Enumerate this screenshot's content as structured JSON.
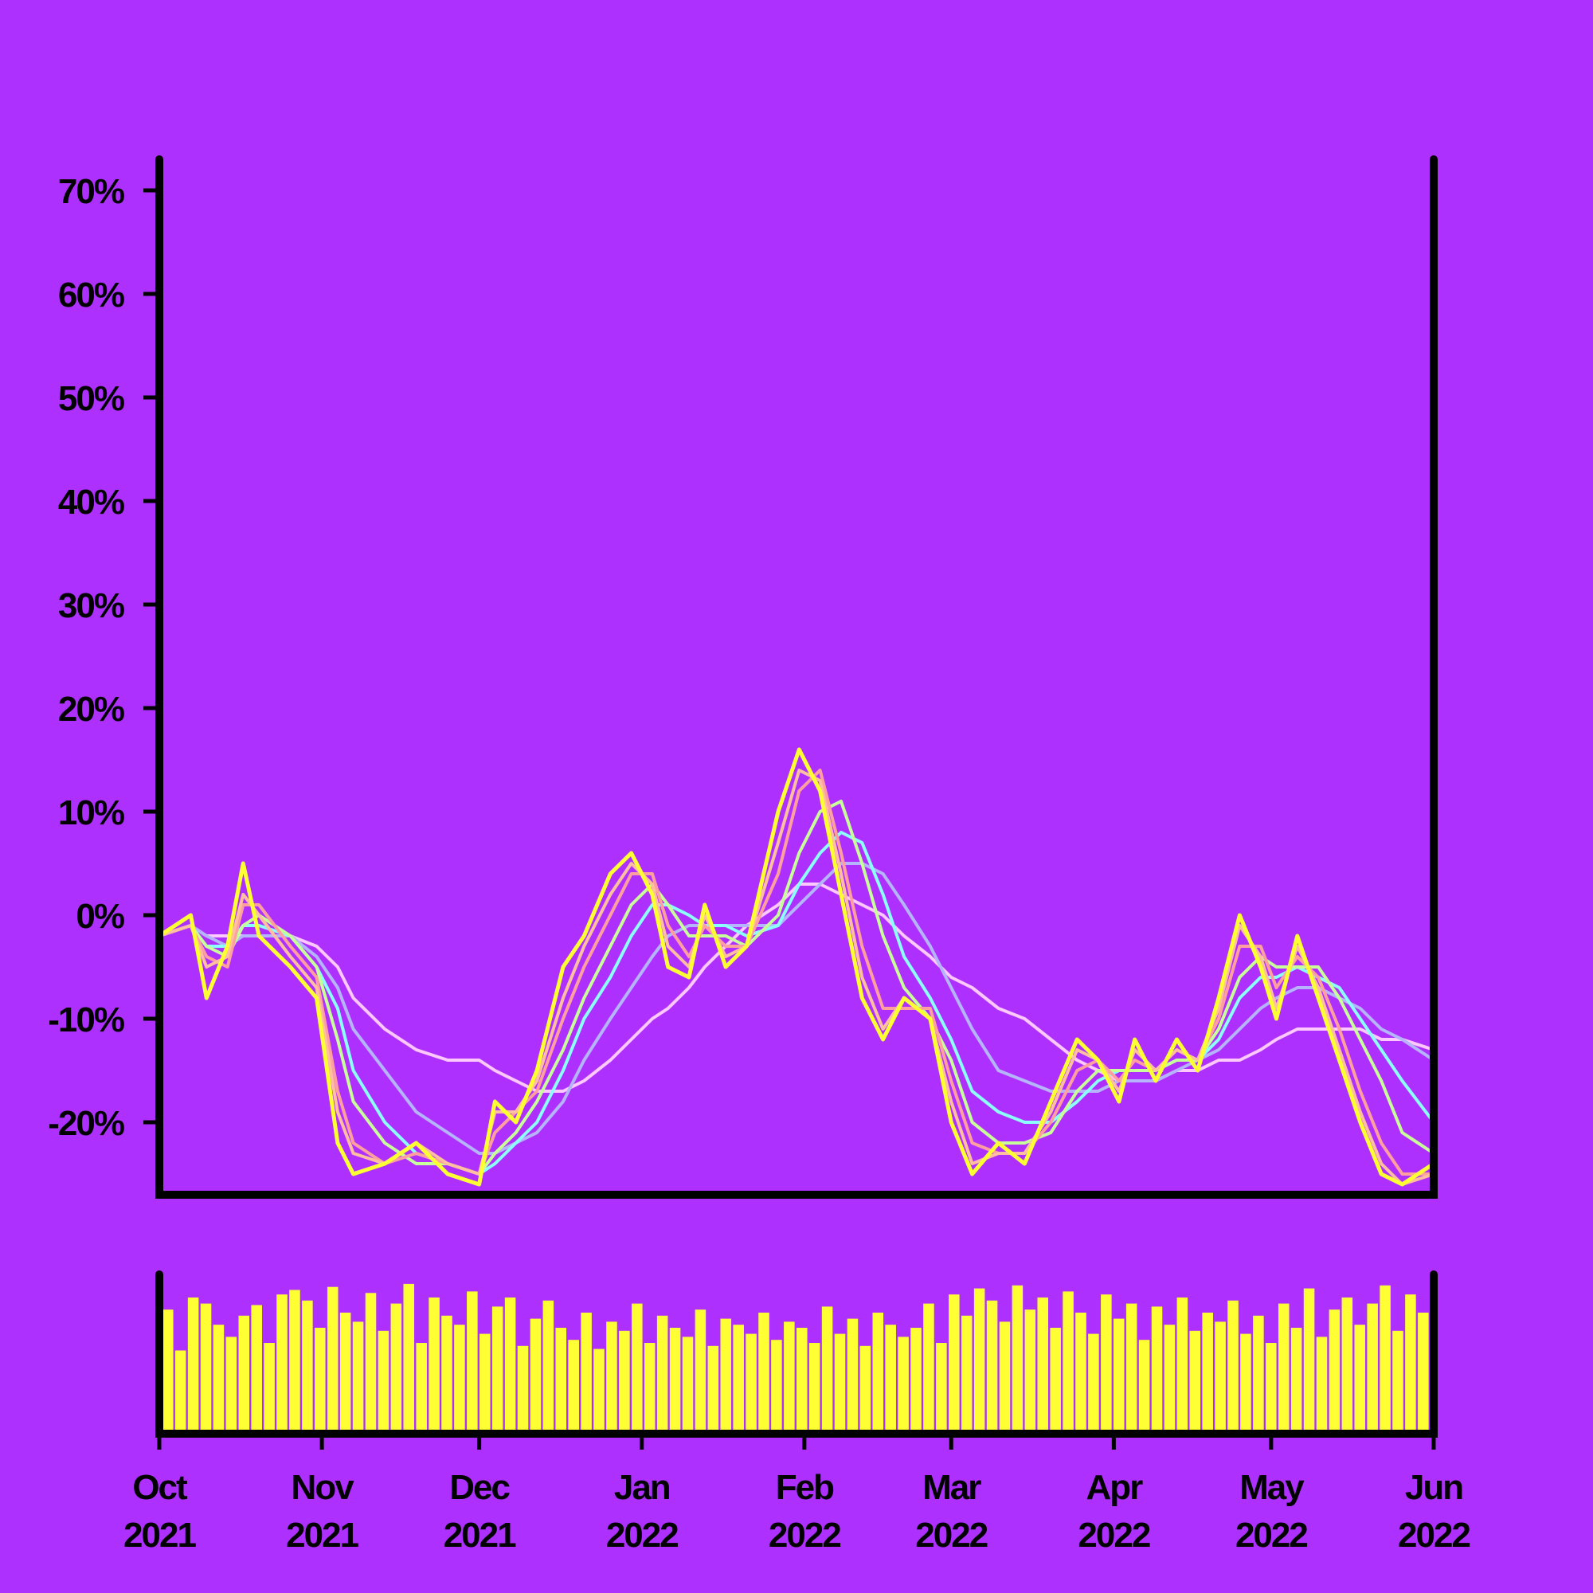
{
  "chart_data": {
    "type": "line",
    "colors": {
      "background": "#ae30ff",
      "axis": "#000000",
      "price": "#ffff33",
      "volume": "#ffff33"
    },
    "price_axis": {
      "ylim": [
        -27,
        73
      ],
      "ticks": [
        {
          "value": 70,
          "label": "70%"
        },
        {
          "value": 60,
          "label": "60%"
        },
        {
          "value": 50,
          "label": "50%"
        },
        {
          "value": 40,
          "label": "40%"
        },
        {
          "value": 30,
          "label": "30%"
        },
        {
          "value": 20,
          "label": "20%"
        },
        {
          "value": 10,
          "label": "10%"
        },
        {
          "value": 0,
          "label": "0%"
        },
        {
          "value": -10,
          "label": "-10%"
        },
        {
          "value": -20,
          "label": "-20%"
        }
      ]
    },
    "x_axis": {
      "range": [
        "2021-10-01",
        "2022-06-01"
      ],
      "ticks": [
        {
          "date": "2021-10-01",
          "month": "Oct",
          "year": "2021"
        },
        {
          "date": "2021-11-01",
          "month": "Nov",
          "year": "2021"
        },
        {
          "date": "2021-12-01",
          "month": "Dec",
          "year": "2021"
        },
        {
          "date": "2022-01-01",
          "month": "Jan",
          "year": "2022"
        },
        {
          "date": "2022-02-01",
          "month": "Feb",
          "year": "2022"
        },
        {
          "date": "2022-03-01",
          "month": "Mar",
          "year": "2022"
        },
        {
          "date": "2022-04-01",
          "month": "Apr",
          "year": "2022"
        },
        {
          "date": "2022-05-01",
          "month": "May",
          "year": "2022"
        },
        {
          "date": "2022-06-01",
          "month": "Jun",
          "year": "2022"
        }
      ]
    },
    "price_series": {
      "dates": [
        "2021-10-01",
        "2021-10-07",
        "2021-10-10",
        "2021-10-14",
        "2021-10-17",
        "2021-10-20",
        "2021-10-26",
        "2021-10-31",
        "2021-11-04",
        "2021-11-07",
        "2021-11-13",
        "2021-11-19",
        "2021-11-25",
        "2021-12-01",
        "2021-12-04",
        "2021-12-08",
        "2021-12-12",
        "2021-12-17",
        "2021-12-21",
        "2021-12-26",
        "2021-12-30",
        "2022-01-03",
        "2022-01-06",
        "2022-01-10",
        "2022-01-13",
        "2022-01-17",
        "2022-01-21",
        "2022-01-27",
        "2022-01-31",
        "2022-02-04",
        "2022-02-08",
        "2022-02-12",
        "2022-02-16",
        "2022-02-20",
        "2022-02-25",
        "2022-03-01",
        "2022-03-05",
        "2022-03-10",
        "2022-03-15",
        "2022-03-20",
        "2022-03-25",
        "2022-03-29",
        "2022-04-02",
        "2022-04-05",
        "2022-04-09",
        "2022-04-13",
        "2022-04-17",
        "2022-04-21",
        "2022-04-25",
        "2022-04-29",
        "2022-05-02",
        "2022-05-06",
        "2022-05-10",
        "2022-05-14",
        "2022-05-18",
        "2022-05-22",
        "2022-05-26",
        "2022-06-01"
      ],
      "values": [
        -2,
        0,
        -8,
        -3,
        5,
        -2,
        -5,
        -8,
        -22,
        -25,
        -24,
        -22,
        -25,
        -26,
        -18,
        -20,
        -15,
        -5,
        -2,
        4,
        6,
        2,
        -5,
        -6,
        1,
        -5,
        -3,
        10,
        16,
        12,
        2,
        -8,
        -12,
        -8,
        -10,
        -20,
        -25,
        -22,
        -24,
        -18,
        -12,
        -14,
        -18,
        -12,
        -16,
        -12,
        -15,
        -8,
        0,
        -5,
        -10,
        -2,
        -8,
        -14,
        -20,
        -25,
        -26,
        -24
      ]
    },
    "ma_series": [
      {
        "window": 5,
        "color": "#ffbfa0",
        "values": [
          -2,
          -1,
          -5,
          -4,
          2,
          0,
          -4,
          -7,
          -19,
          -23,
          -24,
          -22,
          -24,
          -25,
          -19,
          -19,
          -16,
          -8,
          -3,
          2,
          5,
          3,
          -3,
          -5,
          0,
          -4,
          -3,
          7,
          14,
          13,
          4,
          -6,
          -11,
          -8,
          -10,
          -18,
          -24,
          -23,
          -23,
          -19,
          -13,
          -14,
          -17,
          -13,
          -15,
          -13,
          -14,
          -9,
          -1,
          -4,
          -9,
          -3,
          -7,
          -13,
          -19,
          -24,
          -26,
          -25
        ]
      },
      {
        "window": 10,
        "color": "#ff9f9f",
        "values": [
          -2,
          -1,
          -4,
          -5,
          1,
          1,
          -3,
          -6,
          -17,
          -22,
          -24,
          -23,
          -24,
          -25,
          -21,
          -19,
          -17,
          -10,
          -5,
          0,
          4,
          4,
          -1,
          -4,
          -1,
          -3,
          -3,
          4,
          12,
          14,
          6,
          -3,
          -9,
          -9,
          -9,
          -16,
          -22,
          -23,
          -23,
          -20,
          -15,
          -14,
          -16,
          -14,
          -15,
          -13,
          -14,
          -10,
          -3,
          -3,
          -7,
          -4,
          -6,
          -11,
          -17,
          -22,
          -25,
          -25
        ]
      },
      {
        "window": 20,
        "color": "#c8ff9a",
        "values": [
          -2,
          -1,
          -3,
          -4,
          -1,
          0,
          -2,
          -5,
          -12,
          -18,
          -22,
          -24,
          -24,
          -25,
          -23,
          -21,
          -18,
          -13,
          -8,
          -3,
          1,
          3,
          1,
          -2,
          -2,
          -2,
          -3,
          0,
          6,
          10,
          11,
          5,
          -2,
          -7,
          -10,
          -14,
          -20,
          -22,
          -22,
          -21,
          -17,
          -15,
          -15,
          -15,
          -15,
          -14,
          -14,
          -11,
          -6,
          -4,
          -5,
          -5,
          -5,
          -8,
          -12,
          -16,
          -21,
          -23
        ]
      },
      {
        "window": 30,
        "color": "#8cffff",
        "values": [
          -2,
          -1,
          -3,
          -3,
          -1,
          -1,
          -2,
          -5,
          -9,
          -15,
          -20,
          -23,
          -24,
          -25,
          -24,
          -22,
          -20,
          -15,
          -10,
          -6,
          -2,
          1,
          1,
          0,
          -1,
          -1,
          -2,
          -1,
          3,
          6,
          8,
          7,
          2,
          -4,
          -8,
          -12,
          -17,
          -19,
          -20,
          -20,
          -18,
          -16,
          -15,
          -15,
          -15,
          -14,
          -14,
          -12,
          -8,
          -6,
          -6,
          -5,
          -6,
          -7,
          -10,
          -13,
          -16,
          -20
        ]
      },
      {
        "window": 50,
        "color": "#b4b4ff",
        "values": [
          -2,
          -1,
          -2,
          -3,
          -2,
          -2,
          -2,
          -4,
          -7,
          -11,
          -15,
          -19,
          -21,
          -23,
          -23,
          -22,
          -21,
          -18,
          -14,
          -10,
          -7,
          -4,
          -2,
          -1,
          -1,
          -1,
          -1,
          -1,
          1,
          3,
          5,
          5,
          4,
          1,
          -3,
          -7,
          -11,
          -15,
          -16,
          -17,
          -17,
          -17,
          -16,
          -16,
          -16,
          -15,
          -14,
          -13,
          -11,
          -9,
          -8,
          -7,
          -7,
          -8,
          -9,
          -11,
          -12,
          -14
        ]
      },
      {
        "window": 100,
        "color": "#ffc8ff",
        "values": [
          -2,
          -1,
          -2,
          -2,
          -2,
          -2,
          -2,
          -3,
          -5,
          -8,
          -11,
          -13,
          -14,
          -14,
          -15,
          -16,
          -17,
          -17,
          -16,
          -14,
          -12,
          -10,
          -9,
          -7,
          -5,
          -3,
          -1,
          1,
          3,
          3,
          2,
          1,
          0,
          -2,
          -4,
          -6,
          -7,
          -9,
          -10,
          -12,
          -14,
          -15,
          -16,
          -16,
          -16,
          -15,
          -15,
          -14,
          -14,
          -13,
          -12,
          -11,
          -11,
          -11,
          -11,
          -12,
          -12,
          -13
        ]
      }
    ],
    "volume_series": {
      "relative_values": [
        0.82,
        0.55,
        0.9,
        0.86,
        0.72,
        0.64,
        0.78,
        0.85,
        0.6,
        0.92,
        0.95,
        0.88,
        0.7,
        0.97,
        0.8,
        0.74,
        0.93,
        0.68,
        0.86,
        0.99,
        0.6,
        0.9,
        0.78,
        0.72,
        0.94,
        0.66,
        0.84,
        0.9,
        0.58,
        0.76,
        0.88,
        0.7,
        0.62,
        0.8,
        0.56,
        0.74,
        0.68,
        0.86,
        0.6,
        0.78,
        0.7,
        0.64,
        0.82,
        0.58,
        0.76,
        0.72,
        0.66,
        0.8,
        0.62,
        0.74,
        0.7,
        0.6,
        0.84,
        0.66,
        0.76,
        0.58,
        0.8,
        0.72,
        0.64,
        0.7,
        0.86,
        0.6,
        0.92,
        0.78,
        0.96,
        0.88,
        0.74,
        0.98,
        0.82,
        0.9,
        0.7,
        0.94,
        0.8,
        0.66,
        0.92,
        0.76,
        0.86,
        0.62,
        0.84,
        0.72,
        0.9,
        0.68,
        0.8,
        0.74,
        0.88,
        0.66,
        0.78,
        0.6,
        0.86,
        0.7,
        0.96,
        0.64,
        0.82,
        0.9,
        0.72,
        0.86,
        0.98,
        0.68,
        0.92,
        0.8
      ]
    }
  }
}
